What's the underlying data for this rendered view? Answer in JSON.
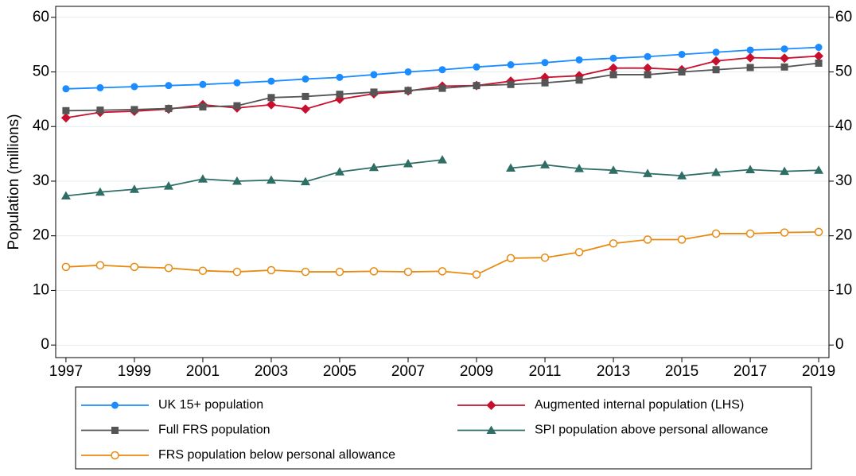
{
  "chart_data": {
    "type": "line",
    "y_label": "Population (millions)",
    "x": [
      1997,
      1998,
      1999,
      2000,
      2001,
      2002,
      2003,
      2004,
      2005,
      2006,
      2007,
      2008,
      2009,
      2010,
      2011,
      2012,
      2013,
      2014,
      2015,
      2016,
      2017,
      2018,
      2019
    ],
    "xlim": [
      1996.7,
      2019.3
    ],
    "xticks": [
      1997,
      1999,
      2001,
      2003,
      2005,
      2007,
      2009,
      2011,
      2013,
      2015,
      2017,
      2019
    ],
    "ylim": [
      -2.3,
      62
    ],
    "yticks": [
      0,
      10,
      20,
      30,
      40,
      50,
      60
    ],
    "y2lim": [
      -2.3,
      62
    ],
    "y2ticks": [
      0,
      10,
      20,
      30,
      40,
      50,
      60
    ],
    "grid": true,
    "legend": "bottom",
    "series": [
      {
        "name": "UK 15+ population",
        "color": "#1a8cff",
        "marker": "circle",
        "values": [
          46.9,
          47.1,
          47.3,
          47.5,
          47.7,
          48.0,
          48.3,
          48.7,
          49.0,
          49.5,
          50.0,
          50.4,
          50.9,
          51.3,
          51.7,
          52.2,
          52.5,
          52.8,
          53.2,
          53.6,
          54.0,
          54.2,
          54.5
        ]
      },
      {
        "name": "Augmented internal population (LHS)",
        "color": "#c8102e",
        "marker": "diamond",
        "values": [
          41.6,
          42.6,
          42.8,
          43.2,
          44.0,
          43.4,
          44.0,
          43.2,
          45.0,
          46.0,
          46.5,
          47.4,
          47.5,
          48.3,
          49.0,
          49.3,
          50.7,
          50.7,
          50.4,
          52.0,
          52.6,
          52.5,
          52.9
        ]
      },
      {
        "name": "Full FRS population",
        "color": "#555555",
        "marker": "square",
        "values": [
          42.9,
          43.0,
          43.1,
          43.3,
          43.6,
          43.8,
          45.3,
          45.5,
          45.9,
          46.3,
          46.6,
          47.0,
          47.5,
          47.7,
          48.0,
          48.5,
          49.5,
          49.5,
          50.0,
          50.4,
          50.8,
          50.9,
          51.6
        ]
      },
      {
        "name": "SPI population above personal allowance",
        "color": "#2e6e65",
        "marker": "triangle",
        "values": [
          27.3,
          28.0,
          28.5,
          29.1,
          30.4,
          30.0,
          30.2,
          29.9,
          31.7,
          32.5,
          33.2,
          33.9,
          null,
          32.4,
          33.0,
          32.3,
          32.0,
          31.4,
          31.0,
          31.6,
          32.1,
          31.8,
          32.0
        ]
      },
      {
        "name": "FRS population below personal allowance",
        "color": "#e88a10",
        "marker": "hollow-circle",
        "values": [
          14.3,
          14.6,
          14.3,
          14.1,
          13.6,
          13.4,
          13.7,
          13.4,
          13.4,
          13.5,
          13.4,
          13.5,
          12.9,
          15.9,
          16.0,
          17.0,
          18.6,
          19.3,
          19.3,
          20.4,
          20.4,
          20.6,
          20.7
        ]
      }
    ]
  }
}
